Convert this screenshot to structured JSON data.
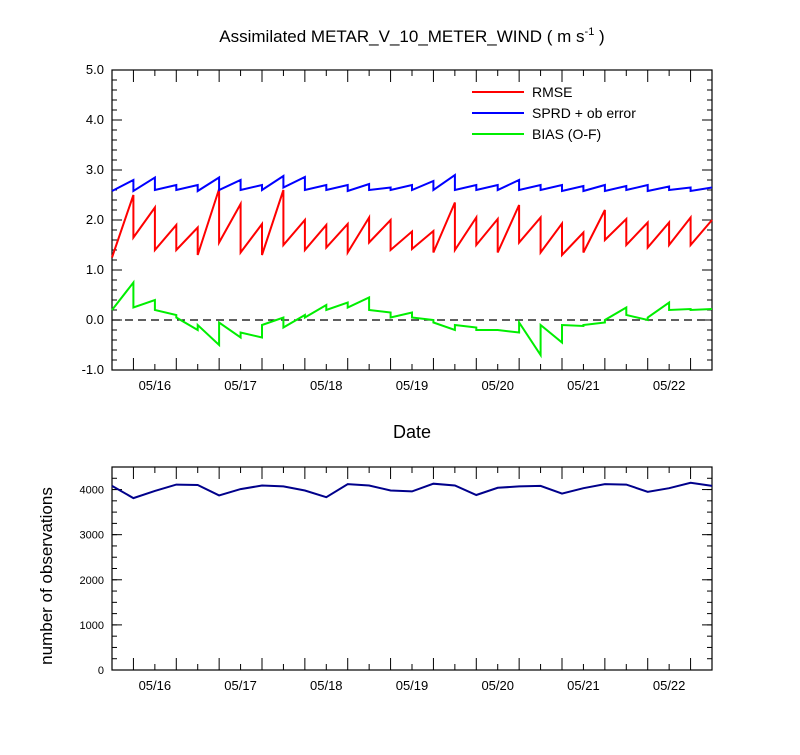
{
  "chart_data": [
    {
      "type": "line",
      "title": "Assimilated METAR_V_10_METER_WIND ( m s",
      "title_superscript": "-1",
      "title_suffix": " )",
      "xlabel": "Date",
      "ylabel": "",
      "ylim": [
        -1.0,
        5.0
      ],
      "yticks": [
        "-1.0",
        "0.0",
        "1.0",
        "2.0",
        "3.0",
        "4.0",
        "5.0"
      ],
      "xlim": [
        0,
        7.0
      ],
      "xticks": [
        {
          "x": 0.5,
          "label": "05/16"
        },
        {
          "x": 1.5,
          "label": "05/17"
        },
        {
          "x": 2.5,
          "label": "05/18"
        },
        {
          "x": 3.5,
          "label": "05/19"
        },
        {
          "x": 4.5,
          "label": "05/20"
        },
        {
          "x": 5.5,
          "label": "05/21"
        },
        {
          "x": 6.5,
          "label": "05/22"
        }
      ],
      "reference_line": {
        "y": 0.0,
        "style": "dashed"
      },
      "legend_position": "top-right",
      "series": [
        {
          "name": "RMSE",
          "color": "#ff0000",
          "x": [
            0.0,
            0.25,
            0.25,
            0.5,
            0.5,
            0.75,
            0.75,
            1.0,
            1.0,
            1.25,
            1.25,
            1.5,
            1.5,
            1.75,
            1.75,
            2.0,
            2.0,
            2.25,
            2.25,
            2.5,
            2.5,
            2.75,
            2.75,
            3.0,
            3.0,
            3.25,
            3.25,
            3.5,
            3.5,
            3.75,
            3.75,
            4.0,
            4.0,
            4.25,
            4.25,
            4.5,
            4.5,
            4.75,
            4.75,
            5.0,
            5.0,
            5.25,
            5.25,
            5.5,
            5.5,
            5.75,
            5.75,
            6.0,
            6.0,
            6.25,
            6.25,
            6.5,
            6.5,
            6.75,
            6.75,
            7.0
          ],
          "y": [
            1.25,
            2.5,
            1.65,
            2.25,
            1.4,
            1.9,
            1.4,
            1.85,
            1.3,
            2.62,
            1.55,
            2.32,
            1.35,
            1.92,
            1.3,
            2.6,
            1.5,
            2.0,
            1.4,
            1.9,
            1.45,
            1.92,
            1.35,
            2.05,
            1.55,
            2.0,
            1.4,
            1.77,
            1.42,
            1.78,
            1.35,
            2.35,
            1.4,
            2.05,
            1.5,
            2.02,
            1.35,
            2.3,
            1.55,
            2.05,
            1.35,
            1.93,
            1.3,
            1.75,
            1.35,
            2.2,
            1.6,
            2.02,
            1.5,
            1.95,
            1.45,
            1.95,
            1.5,
            2.05,
            1.5,
            2.0
          ]
        },
        {
          "name": "SPRD + ob error",
          "color": "#0000ff",
          "x": [
            0.0,
            0.25,
            0.25,
            0.5,
            0.5,
            0.75,
            0.75,
            1.0,
            1.0,
            1.25,
            1.25,
            1.5,
            1.5,
            1.75,
            1.75,
            2.0,
            2.0,
            2.25,
            2.25,
            2.5,
            2.5,
            2.75,
            2.75,
            3.0,
            3.0,
            3.25,
            3.25,
            3.5,
            3.5,
            3.75,
            3.75,
            4.0,
            4.0,
            4.25,
            4.25,
            4.5,
            4.5,
            4.75,
            4.75,
            5.0,
            5.0,
            5.25,
            5.25,
            5.5,
            5.5,
            5.75,
            5.75,
            6.0,
            6.0,
            6.25,
            6.25,
            6.5,
            6.5,
            6.75,
            6.75,
            7.0
          ],
          "y": [
            2.58,
            2.8,
            2.58,
            2.85,
            2.6,
            2.7,
            2.6,
            2.7,
            2.58,
            2.85,
            2.6,
            2.8,
            2.6,
            2.7,
            2.6,
            2.88,
            2.65,
            2.86,
            2.6,
            2.7,
            2.6,
            2.7,
            2.58,
            2.72,
            2.6,
            2.65,
            2.6,
            2.7,
            2.6,
            2.78,
            2.6,
            2.9,
            2.6,
            2.7,
            2.6,
            2.7,
            2.6,
            2.8,
            2.6,
            2.7,
            2.6,
            2.7,
            2.58,
            2.68,
            2.58,
            2.7,
            2.58,
            2.68,
            2.6,
            2.7,
            2.58,
            2.67,
            2.6,
            2.65,
            2.58,
            2.65
          ]
        },
        {
          "name": "BIAS (O-F)",
          "color": "#00ee00",
          "x": [
            0.0,
            0.25,
            0.25,
            0.5,
            0.5,
            0.75,
            0.75,
            1.0,
            1.0,
            1.25,
            1.25,
            1.5,
            1.5,
            1.75,
            1.75,
            2.0,
            2.0,
            2.25,
            2.25,
            2.5,
            2.5,
            2.75,
            2.75,
            3.0,
            3.0,
            3.25,
            3.25,
            3.5,
            3.5,
            3.75,
            3.75,
            4.0,
            4.0,
            4.25,
            4.25,
            4.5,
            4.5,
            4.75,
            4.75,
            5.0,
            5.0,
            5.25,
            5.25,
            5.5,
            5.5,
            5.75,
            5.75,
            6.0,
            6.0,
            6.25,
            6.25,
            6.5,
            6.5,
            6.75,
            6.75,
            7.0
          ],
          "y": [
            0.2,
            0.75,
            0.25,
            0.4,
            0.2,
            0.1,
            0.05,
            -0.2,
            -0.1,
            -0.5,
            -0.05,
            -0.35,
            -0.25,
            -0.35,
            -0.1,
            0.05,
            -0.15,
            0.1,
            0.05,
            0.3,
            0.2,
            0.35,
            0.25,
            0.45,
            0.2,
            0.15,
            0.05,
            0.15,
            0.05,
            0.0,
            -0.05,
            -0.2,
            -0.1,
            -0.15,
            -0.2,
            -0.2,
            -0.2,
            -0.25,
            -0.05,
            -0.7,
            -0.1,
            -0.45,
            -0.1,
            -0.12,
            -0.1,
            -0.05,
            0.0,
            0.25,
            0.1,
            0.0,
            0.05,
            0.35,
            0.2,
            0.22,
            0.2,
            0.22
          ]
        }
      ]
    },
    {
      "type": "line",
      "title": "",
      "xlabel": "",
      "ylabel": "number of observations",
      "ylim": [
        0,
        4500
      ],
      "yticks": [
        "0",
        "1000",
        "2000",
        "3000",
        "4000"
      ],
      "xlim": [
        0,
        7.0
      ],
      "xticks": [
        {
          "x": 0.5,
          "label": "05/16"
        },
        {
          "x": 1.5,
          "label": "05/17"
        },
        {
          "x": 2.5,
          "label": "05/18"
        },
        {
          "x": 3.5,
          "label": "05/19"
        },
        {
          "x": 4.5,
          "label": "05/20"
        },
        {
          "x": 5.5,
          "label": "05/21"
        },
        {
          "x": 6.5,
          "label": "05/22"
        }
      ],
      "series": [
        {
          "color": "#00008b",
          "x": [
            0.0,
            0.25,
            0.5,
            0.75,
            1.0,
            1.25,
            1.5,
            1.75,
            2.0,
            2.25,
            2.5,
            2.75,
            3.0,
            3.25,
            3.5,
            3.75,
            4.0,
            4.25,
            4.5,
            4.75,
            5.0,
            5.25,
            5.5,
            5.75,
            6.0,
            6.25,
            6.5,
            6.75,
            7.0
          ],
          "y": [
            4080,
            3810,
            3970,
            4110,
            4100,
            3870,
            4010,
            4090,
            4070,
            3980,
            3830,
            4120,
            4090,
            3980,
            3960,
            4130,
            4090,
            3880,
            4040,
            4070,
            4080,
            3910,
            4030,
            4120,
            4110,
            3950,
            4030,
            4150,
            4080
          ]
        }
      ]
    }
  ]
}
